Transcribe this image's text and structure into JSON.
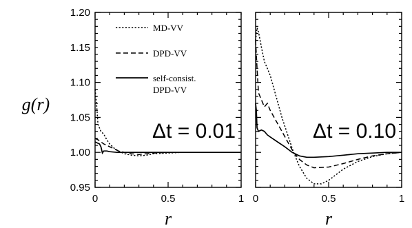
{
  "chart_data": [
    {
      "type": "line",
      "annotation": "Δt = 0.01",
      "xlabel": "r",
      "ylabel": "g(r)",
      "xlim": [
        0,
        1
      ],
      "ylim": [
        0.95,
        1.2
      ],
      "x_ticks": [
        "0",
        "0.5",
        "1"
      ],
      "y_ticks": [
        "0.95",
        "1.00",
        "1.05",
        "1.10",
        "1.15",
        "1.20"
      ],
      "legend": [
        "MD-VV",
        "DPD-VV",
        "self-consist.",
        "DPD-VV"
      ],
      "legend_position": "top-left",
      "series": [
        {
          "name": "MD-VV",
          "style": "dotted",
          "x": [
            0,
            0.01,
            0.02,
            0.04,
            0.06,
            0.08,
            0.1,
            0.13,
            0.16,
            0.2,
            0.25,
            0.3,
            0.35,
            0.4,
            0.5,
            0.6,
            0.7,
            0.8,
            0.9,
            1.0
          ],
          "y": [
            1.09,
            1.07,
            1.04,
            1.03,
            1.026,
            1.018,
            1.012,
            1.006,
            1.002,
            0.998,
            0.996,
            0.995,
            0.996,
            0.998,
            0.999,
            1.0,
            1.0,
            1.0,
            1.0,
            1.0
          ]
        },
        {
          "name": "DPD-VV",
          "style": "dashed",
          "x": [
            0,
            0.02,
            0.04,
            0.06,
            0.08,
            0.1,
            0.13,
            0.16,
            0.2,
            0.25,
            0.3,
            0.35,
            0.4,
            0.5,
            0.6,
            0.7,
            0.8,
            0.9,
            1.0
          ],
          "y": [
            1.02,
            1.018,
            1.015,
            1.012,
            1.01,
            1.008,
            1.005,
            1.002,
            1.0,
            0.998,
            0.997,
            0.998,
            0.999,
            1.0,
            1.0,
            1.0,
            1.0,
            1.0,
            1.0
          ]
        },
        {
          "name": "self-consist. DPD-VV",
          "style": "solid",
          "x": [
            0,
            0.02,
            0.03,
            0.04,
            0.05,
            0.06,
            0.08,
            0.1,
            0.15,
            0.2,
            0.3,
            0.4,
            0.5,
            0.6,
            0.7,
            0.8,
            0.9,
            1.0
          ],
          "y": [
            1.015,
            1.013,
            1.012,
            1.008,
            0.999,
            1.002,
            1.002,
            1.001,
            1.0,
            1.0,
            1.0,
            1.0,
            1.0,
            1.0,
            1.0,
            1.0,
            1.0,
            1.0
          ]
        }
      ]
    },
    {
      "type": "line",
      "annotation": "Δt = 0.10",
      "xlabel": "r",
      "xlim": [
        0,
        1
      ],
      "ylim": [
        0.95,
        1.2
      ],
      "x_ticks": [
        "0",
        "0.5",
        "1"
      ],
      "series": [
        {
          "name": "MD-VV",
          "style": "dotted",
          "x": [
            0,
            0.01,
            0.02,
            0.04,
            0.06,
            0.08,
            0.1,
            0.14,
            0.18,
            0.22,
            0.26,
            0.3,
            0.35,
            0.4,
            0.45,
            0.5,
            0.55,
            0.6,
            0.7,
            0.8,
            0.9,
            1.0
          ],
          "y": [
            1.16,
            1.178,
            1.172,
            1.15,
            1.13,
            1.12,
            1.11,
            1.08,
            1.05,
            1.025,
            1.0,
            0.98,
            0.963,
            0.955,
            0.955,
            0.96,
            0.968,
            0.976,
            0.987,
            0.994,
            0.998,
            1.0
          ]
        },
        {
          "name": "DPD-VV",
          "style": "dashed",
          "x": [
            0,
            0.01,
            0.02,
            0.04,
            0.06,
            0.08,
            0.1,
            0.14,
            0.18,
            0.22,
            0.26,
            0.3,
            0.35,
            0.4,
            0.5,
            0.6,
            0.7,
            0.8,
            0.9,
            1.0
          ],
          "y": [
            1.16,
            1.12,
            1.085,
            1.075,
            1.065,
            1.07,
            1.06,
            1.045,
            1.03,
            1.015,
            1.0,
            0.99,
            0.982,
            0.978,
            0.979,
            0.984,
            0.99,
            0.995,
            0.998,
            1.0
          ]
        },
        {
          "name": "self-consist. DPD-VV",
          "style": "solid",
          "x": [
            0,
            0.005,
            0.01,
            0.02,
            0.04,
            0.06,
            0.08,
            0.1,
            0.15,
            0.2,
            0.25,
            0.3,
            0.35,
            0.4,
            0.5,
            0.6,
            0.7,
            0.8,
            0.9,
            1.0
          ],
          "y": [
            1.07,
            1.06,
            1.035,
            1.03,
            1.032,
            1.03,
            1.025,
            1.022,
            1.015,
            1.008,
            1.0,
            0.995,
            0.993,
            0.993,
            0.994,
            0.996,
            0.998,
            0.999,
            1.0,
            1.0
          ]
        }
      ]
    }
  ]
}
